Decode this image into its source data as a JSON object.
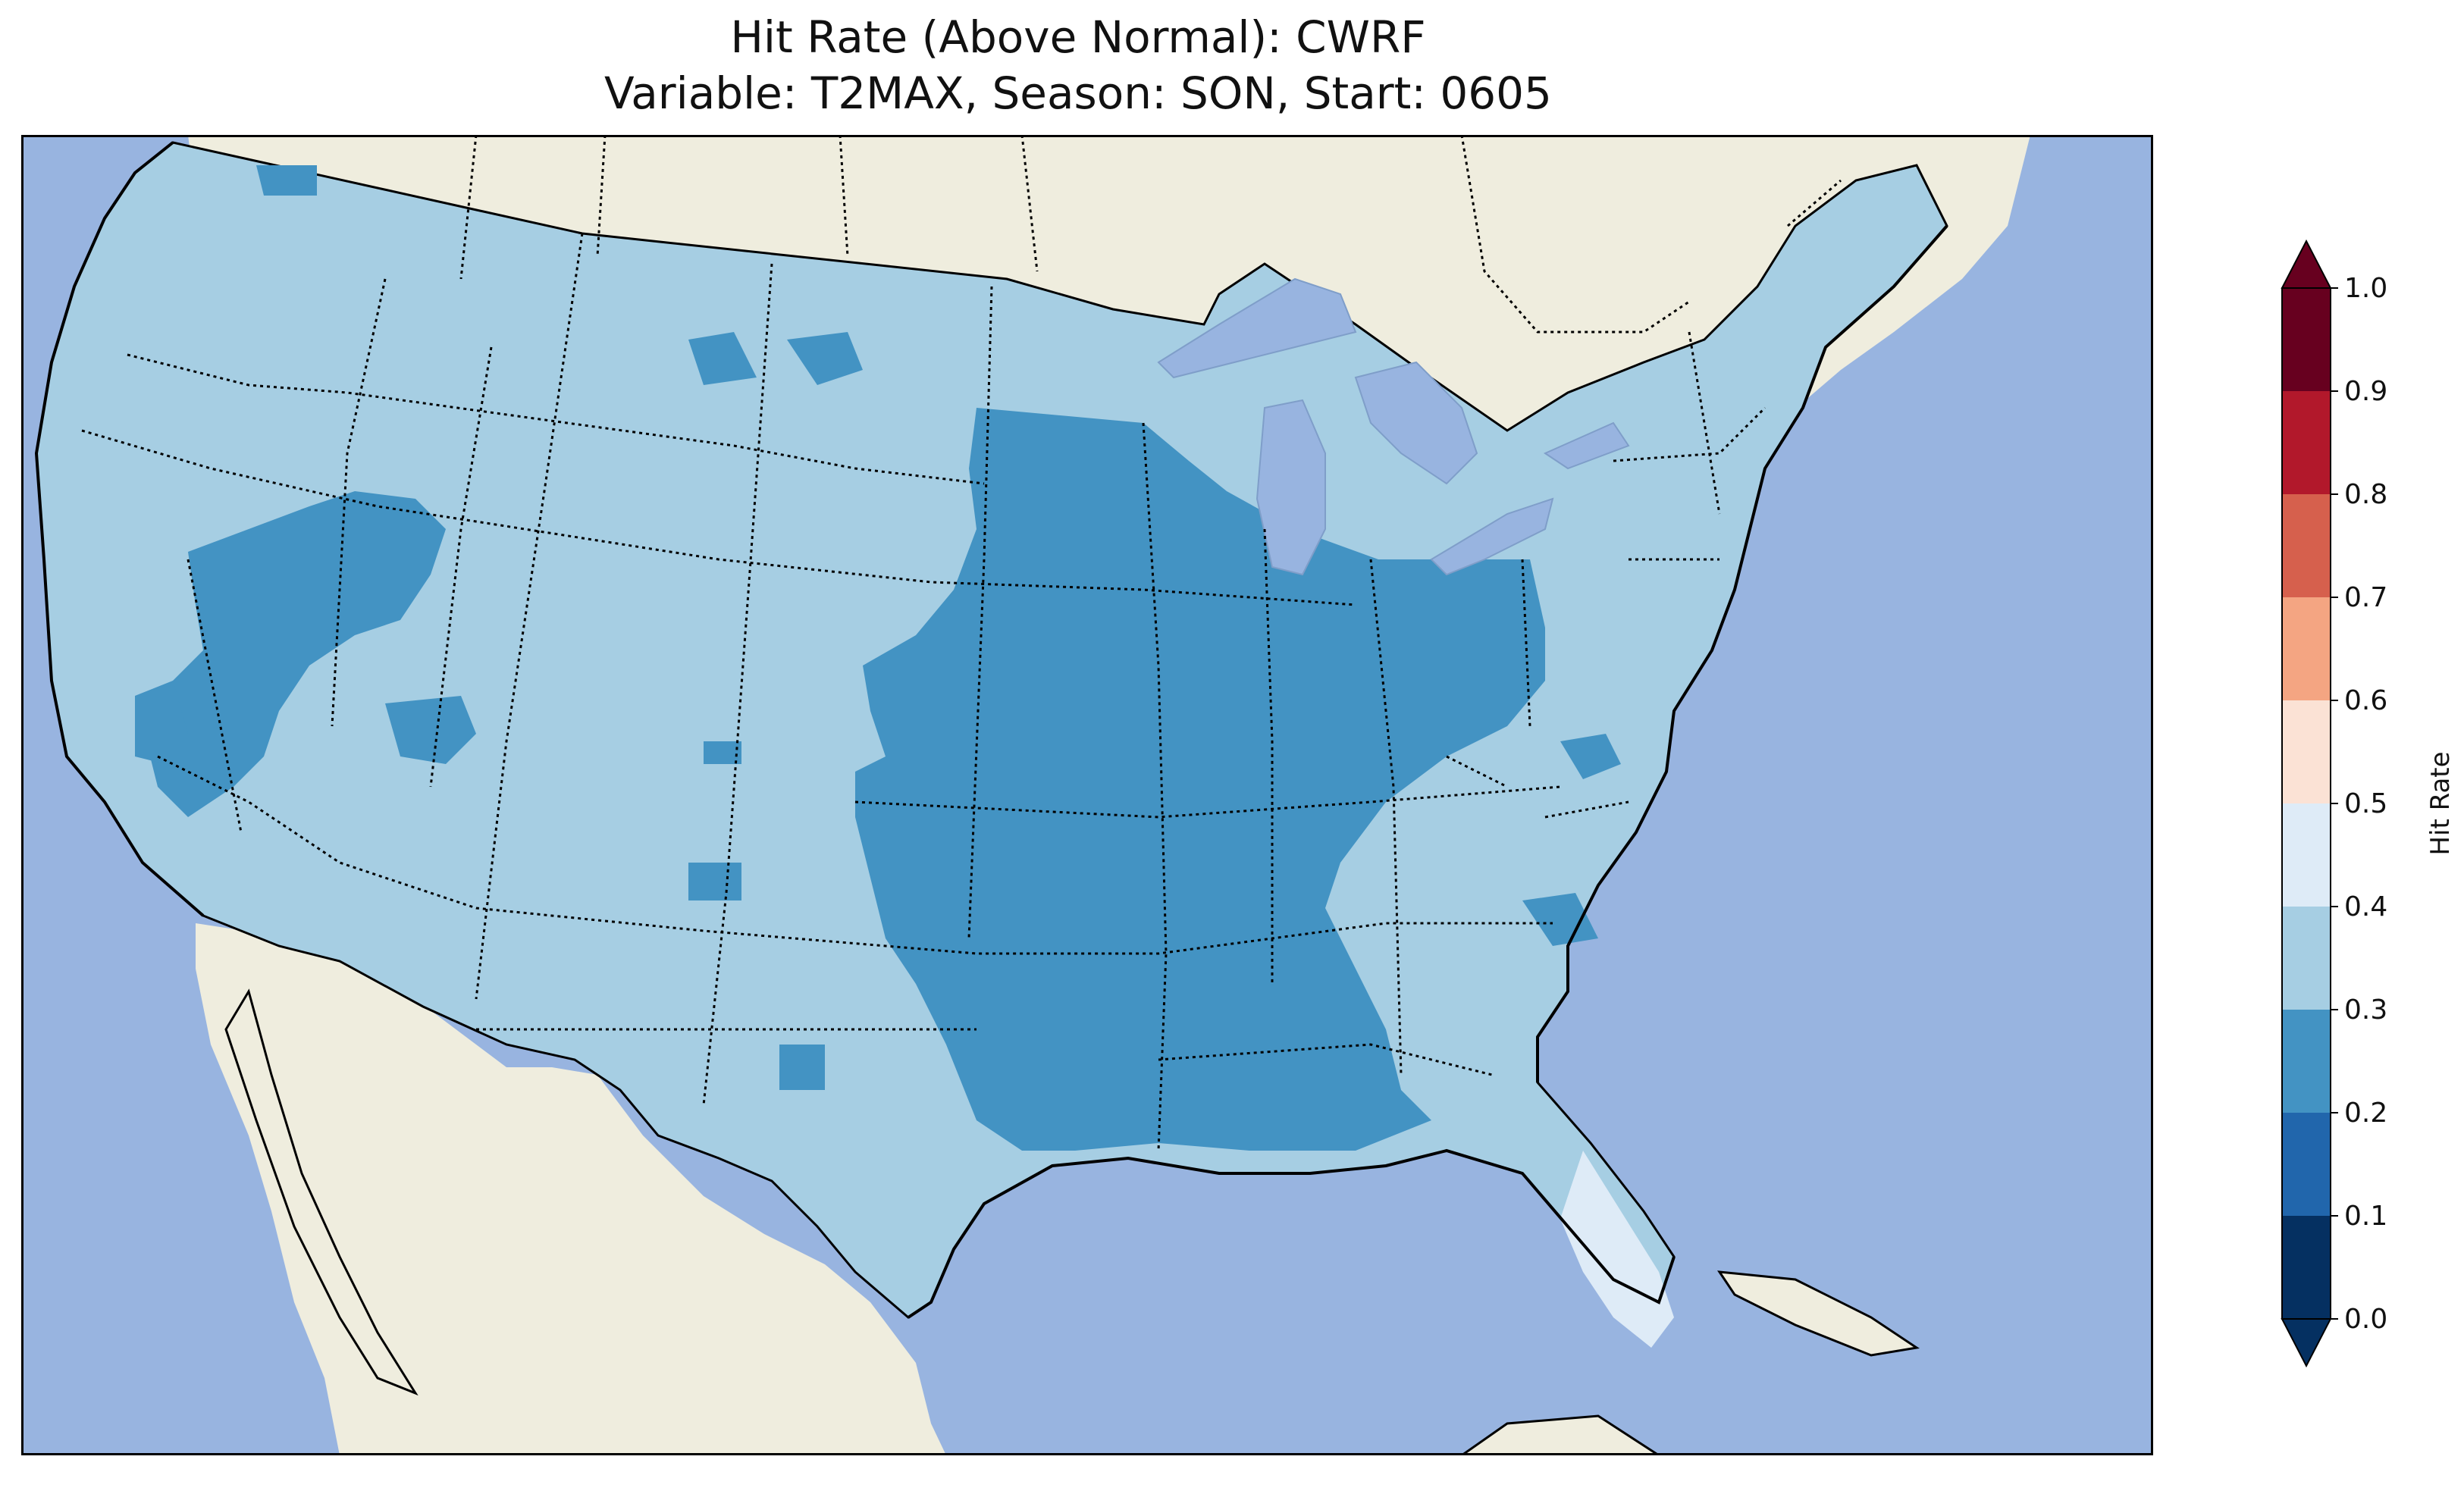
{
  "title": "Hit Rate (Above Normal): CWRF",
  "subtitle": "Variable: T2MAX, Season: SON, Start: 0605",
  "colorbar": {
    "label": "Hit Rate",
    "ticks": [
      "0.0",
      "0.1",
      "0.2",
      "0.3",
      "0.4",
      "0.5",
      "0.6",
      "0.7",
      "0.8",
      "0.9",
      "1.0"
    ],
    "bins": [
      {
        "range": [
          0.0,
          0.1
        ],
        "color": "#053061"
      },
      {
        "range": [
          0.1,
          0.2
        ],
        "color": "#2166ac"
      },
      {
        "range": [
          0.2,
          0.3
        ],
        "color": "#4393c3"
      },
      {
        "range": [
          0.3,
          0.4
        ],
        "color": "#a6cee3"
      },
      {
        "range": [
          0.4,
          0.5
        ],
        "color": "#deebf7"
      },
      {
        "range": [
          0.5,
          0.6
        ],
        "color": "#fbe2d5"
      },
      {
        "range": [
          0.6,
          0.7
        ],
        "color": "#f4a582"
      },
      {
        "range": [
          0.7,
          0.8
        ],
        "color": "#d6604d"
      },
      {
        "range": [
          0.8,
          0.9
        ],
        "color": "#b2182b"
      },
      {
        "range": [
          0.9,
          1.0
        ],
        "color": "#67001f"
      }
    ],
    "extend_low_color": "#053061",
    "extend_high_color": "#67001f"
  },
  "map_colors": {
    "ocean": "#98b4e0",
    "land": "#efedde",
    "coast": "#000000",
    "lakes": "#98b4e0"
  },
  "regions": [
    {
      "name": "Contiguous US (most areas)",
      "hit_rate_bin": [
        0.3,
        0.4
      ]
    },
    {
      "name": "Central and southeastern US (Great Plains to Gulf Coast, Midwest)",
      "hit_rate_bin": [
        0.2,
        0.3
      ]
    },
    {
      "name": "Southern Florida",
      "hit_rate_bin": [
        0.4,
        0.5
      ]
    }
  ]
}
